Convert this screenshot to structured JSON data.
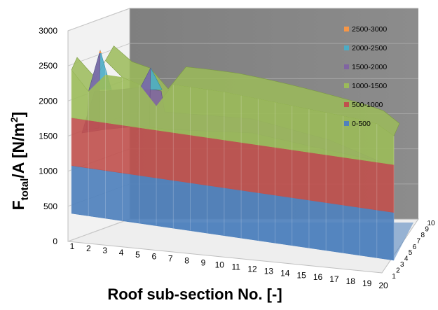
{
  "chart_data": {
    "type": "surface",
    "z_axis": {
      "label_main": "F",
      "label_sub": "total",
      "label_rest": "/A  [N/m",
      "label_sup": "2",
      "label_end": "]",
      "ticks": [
        "0",
        "500",
        "1000",
        "1500",
        "2000",
        "2500",
        "3000"
      ],
      "range": [
        0,
        3000
      ]
    },
    "x_axis": {
      "label": "Roof sub-section No. [-]",
      "ticks": [
        "1",
        "2",
        "3",
        "4",
        "5",
        "6",
        "7",
        "8",
        "9",
        "10",
        "11",
        "12",
        "13",
        "14",
        "15",
        "16",
        "17",
        "18",
        "19",
        "20"
      ]
    },
    "y_axis": {
      "ticks": [
        "1",
        "2",
        "3",
        "4",
        "5",
        "6",
        "7",
        "8",
        "9",
        "10"
      ]
    },
    "legend": {
      "position": "top-right",
      "items": [
        {
          "label": "2500-3000",
          "color": "#f79646"
        },
        {
          "label": "2000-2500",
          "color": "#4bacc6"
        },
        {
          "label": "1500-2000",
          "color": "#8064a2"
        },
        {
          "label": "1000-1500",
          "color": "#9bbb59"
        },
        {
          "label": "500-1000",
          "color": "#c0504d"
        },
        {
          "label": "0-500",
          "color": "#4f81bd"
        }
      ]
    },
    "front_edge_values": [
      1500,
      1300,
      1650,
      1500,
      1450,
      1250,
      1500,
      1500,
      1500,
      1500,
      1490,
      1480,
      1470,
      1460,
      1450,
      1440,
      1430,
      1420,
      1400,
      1300
    ],
    "peaks": [
      {
        "x": 3,
        "value": 2700
      },
      {
        "x": 6,
        "value": 2450
      }
    ],
    "grid": true
  }
}
